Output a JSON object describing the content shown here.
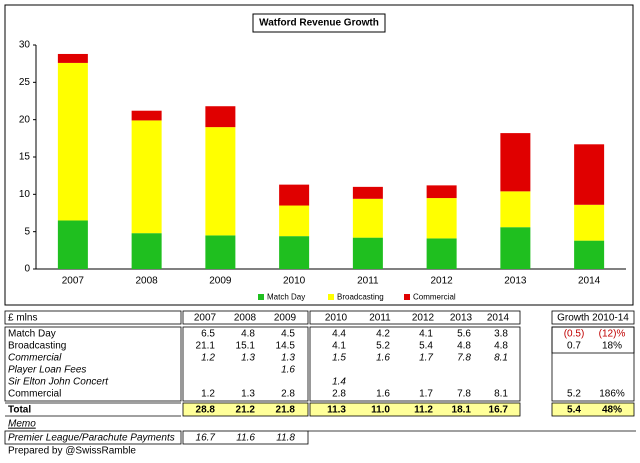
{
  "chart_data": {
    "type": "stacked_bar",
    "title": "Watford Revenue Growth",
    "categories": [
      "2007",
      "2008",
      "2009",
      "2010",
      "2011",
      "2012",
      "2013",
      "2014"
    ],
    "series": [
      {
        "name": "Match Day",
        "color": "#1fbf1f",
        "values": [
          6.5,
          4.8,
          4.5,
          4.4,
          4.2,
          4.1,
          5.6,
          3.8
        ]
      },
      {
        "name": "Broadcasting",
        "color": "#ffff00",
        "values": [
          21.1,
          15.1,
          14.5,
          4.1,
          5.2,
          5.4,
          4.8,
          4.8
        ]
      },
      {
        "name": "Commercial",
        "color": "#e00000",
        "values": [
          1.2,
          1.3,
          2.8,
          2.8,
          1.6,
          1.7,
          7.8,
          8.1
        ]
      }
    ],
    "ylim": [
      0,
      30
    ],
    "yticks": [
      0,
      5,
      10,
      15,
      20,
      25,
      30
    ],
    "grid": false,
    "legend": "bottom"
  },
  "table": {
    "header": {
      "label": "£ mlns",
      "years": [
        "2007",
        "2008",
        "2009",
        "2010",
        "2011",
        "2012",
        "2013",
        "2014"
      ],
      "growth": "Growth 2010-14"
    },
    "rows": [
      {
        "label": "Match Day",
        "cells": [
          "6.5",
          "4.8",
          "4.5",
          "4.4",
          "4.2",
          "4.1",
          "5.6",
          "3.8",
          "(0.5)",
          "(12)%"
        ]
      },
      {
        "label": "Broadcasting",
        "cells": [
          "21.1",
          "15.1",
          "14.5",
          "4.1",
          "5.2",
          "5.4",
          "4.8",
          "4.8",
          "0.7",
          "18%"
        ]
      },
      {
        "label": "Commercial",
        "cells": [
          "1.2",
          "1.3",
          "1.3",
          "1.5",
          "1.6",
          "1.7",
          "7.8",
          "8.1",
          null,
          null
        ]
      },
      {
        "label": "Player Loan Fees",
        "cells": [
          null,
          null,
          "1.6",
          null,
          null,
          null,
          null,
          null,
          null,
          null
        ]
      },
      {
        "label": "Sir Elton John Concert",
        "cells": [
          null,
          null,
          null,
          "1.4",
          null,
          null,
          null,
          null,
          null,
          null
        ]
      },
      {
        "label": "Commercial",
        "cells": [
          "1.2",
          "1.3",
          "2.8",
          "2.8",
          "1.6",
          "1.7",
          "7.8",
          "8.1",
          "5.2",
          "186%"
        ]
      },
      {
        "label": "Total",
        "cells": [
          "28.8",
          "21.2",
          "21.8",
          "11.3",
          "11.0",
          "11.2",
          "18.1",
          "16.7",
          "5.4",
          "48%"
        ]
      }
    ],
    "memo": "Memo",
    "memo_rows": [
      {
        "label": "Premier League/Parachute Payments",
        "cells": [
          "16.7",
          "11.6",
          "11.8"
        ]
      }
    ],
    "footer": "Prepared by @SwissRamble"
  }
}
